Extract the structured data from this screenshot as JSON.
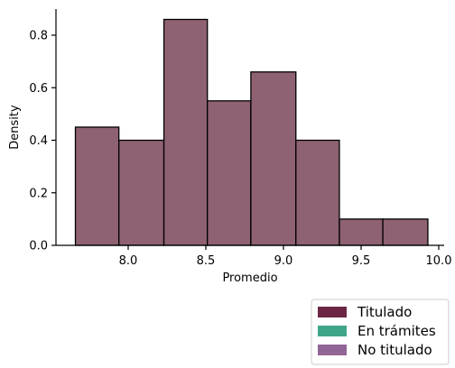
{
  "chart_data": {
    "type": "bar",
    "subtype": "histogram",
    "title": "",
    "xlabel": "Promedio",
    "ylabel": "Density",
    "xlim": [
      7.6,
      10.0
    ],
    "ylim": [
      0,
      0.9
    ],
    "xticks": [
      "8.0",
      "8.5",
      "9.0",
      "9.5",
      "10.0"
    ],
    "xtick_values": [
      8.0,
      8.5,
      9.0,
      9.5,
      10.0
    ],
    "yticks": [
      "0.0",
      "0.2",
      "0.4",
      "0.6",
      "0.8"
    ],
    "ytick_values": [
      0.0,
      0.2,
      0.4,
      0.6,
      0.8
    ],
    "bins": [
      {
        "x0": 7.66,
        "x1": 7.94,
        "density": 0.45
      },
      {
        "x0": 7.94,
        "x1": 8.23,
        "density": 0.4
      },
      {
        "x0": 8.23,
        "x1": 8.51,
        "density": 0.86
      },
      {
        "x0": 8.51,
        "x1": 8.79,
        "density": 0.55
      },
      {
        "x0": 8.79,
        "x1": 9.08,
        "density": 0.66
      },
      {
        "x0": 9.08,
        "x1": 9.36,
        "density": 0.4
      },
      {
        "x0": 9.36,
        "x1": 9.64,
        "density": 0.1
      },
      {
        "x0": 9.64,
        "x1": 9.93,
        "density": 0.1
      }
    ],
    "bar_color": "#8e6173",
    "grid": false,
    "legend_position": "below-right",
    "legend": [
      {
        "label": "Titulado",
        "color": "#6b2644"
      },
      {
        "label": "En trámites",
        "color": "#3fa689"
      },
      {
        "label": "No titulado",
        "color": "#916697"
      }
    ]
  }
}
